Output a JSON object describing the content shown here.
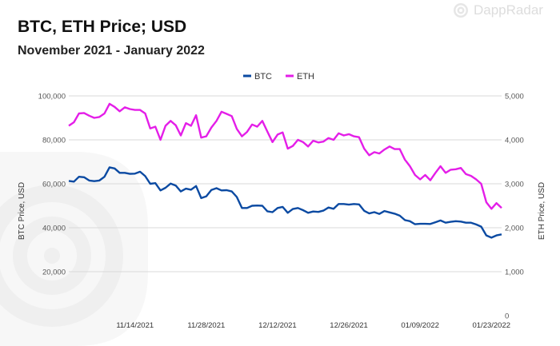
{
  "header": {
    "title": "BTC, ETH Price; USD",
    "subtitle": "November 2021 - January 2022"
  },
  "brand": {
    "name": "DappRadar",
    "icon": "dappradar-logo-icon"
  },
  "colors": {
    "btc": "#0b4aa2",
    "eth": "#e41ee8",
    "grid": "#d9d9d9",
    "axis_text": "#555555"
  },
  "chart_data": {
    "type": "line",
    "title": "BTC, ETH Price; USD",
    "subtitle": "November 2021 - January 2022",
    "x_start_date": "2021-11-01",
    "x_ticks": [
      "11/14/2021",
      "11/28/2021",
      "12/12/2021",
      "12/26/2021",
      "01/09/2022",
      "01/23/2022"
    ],
    "y_left": {
      "label": "BTC Price, USD",
      "range": [
        0,
        100000
      ],
      "ticks": [
        0,
        20000,
        40000,
        60000,
        80000,
        100000
      ],
      "tick_labels": [
        "",
        "20,000",
        "40,000",
        "60,000",
        "80,000",
        "100,000"
      ]
    },
    "y_right": {
      "label": "ETH Price, USD",
      "range": [
        0,
        5000
      ],
      "ticks": [
        0,
        1000,
        2000,
        3000,
        4000,
        5000
      ],
      "tick_labels": [
        "0",
        "1,000",
        "2,000",
        "3,000",
        "4,000",
        "5,000"
      ]
    },
    "legend": {
      "position": "top-center"
    },
    "grid": true,
    "series": [
      {
        "name": "BTC",
        "axis": "left",
        "values": [
          61300,
          61000,
          63200,
          63000,
          61500,
          61200,
          61500,
          63200,
          67500,
          67000,
          65000,
          65000,
          64500,
          64600,
          65500,
          63500,
          60000,
          60300,
          57000,
          58200,
          60100,
          59200,
          56500,
          57800,
          57300,
          59000,
          53500,
          54300,
          57200,
          58000,
          57000,
          57100,
          56500,
          54000,
          49000,
          49000,
          50000,
          50100,
          50000,
          47500,
          47100,
          49000,
          49500,
          46800,
          48500,
          49000,
          48000,
          46800,
          47400,
          47200,
          47800,
          49200,
          48600,
          50800,
          50800,
          50500,
          50800,
          50600,
          47700,
          46500,
          47100,
          46300,
          47600,
          47000,
          46400,
          45500,
          43500,
          43000,
          41600,
          41800,
          41800,
          41700,
          42500,
          43300,
          42300,
          42700,
          43000,
          42800,
          42300,
          42300,
          41500,
          40500,
          36500,
          35500,
          36500,
          37000
        ]
      },
      {
        "name": "ETH",
        "axis": "right",
        "values": [
          4320,
          4400,
          4600,
          4610,
          4550,
          4500,
          4520,
          4600,
          4820,
          4750,
          4650,
          4740,
          4700,
          4680,
          4680,
          4600,
          4260,
          4300,
          4000,
          4320,
          4430,
          4330,
          4100,
          4380,
          4320,
          4560,
          4050,
          4080,
          4280,
          4430,
          4640,
          4590,
          4540,
          4250,
          4080,
          4180,
          4350,
          4300,
          4430,
          4190,
          3950,
          4120,
          4170,
          3800,
          3860,
          4000,
          3950,
          3850,
          3980,
          3940,
          3960,
          4040,
          4000,
          4150,
          4100,
          4130,
          4080,
          4060,
          3800,
          3650,
          3720,
          3690,
          3780,
          3850,
          3790,
          3790,
          3550,
          3400,
          3200,
          3100,
          3200,
          3080,
          3250,
          3400,
          3250,
          3320,
          3330,
          3360,
          3220,
          3180,
          3100,
          3000,
          2580,
          2430,
          2560,
          2450
        ]
      }
    ]
  }
}
